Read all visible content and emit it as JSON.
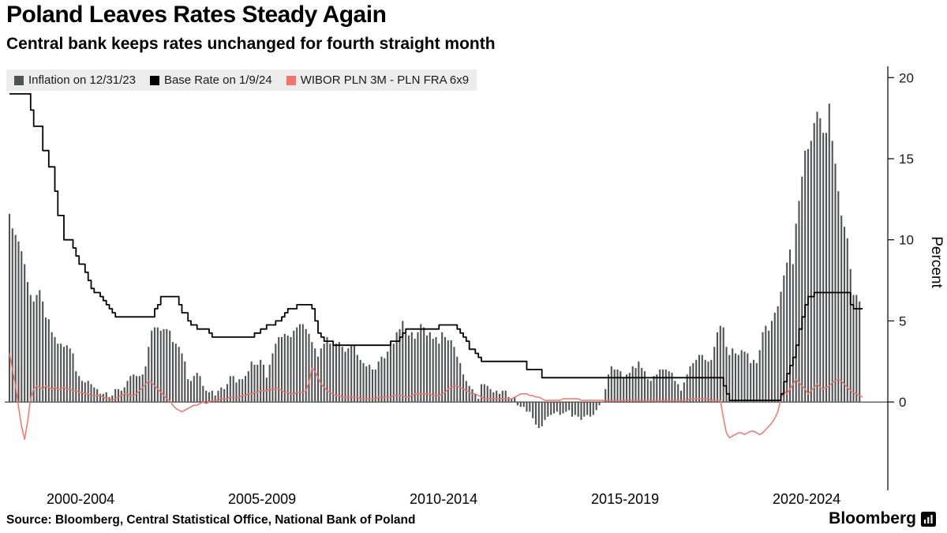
{
  "title": "Poland Leaves Rates Steady Again",
  "subtitle": "Central bank keeps rates unchanged for fourth straight month",
  "source": "Source: Bloomberg, Central Statistical Office, National Bank of Poland",
  "brand": "Bloomberg",
  "legend": [
    {
      "label": "Inflation on 12/31/23",
      "color": "#515254"
    },
    {
      "label": "Base Rate on 1/9/24",
      "color": "#000000"
    },
    {
      "label": "WIBOR PLN 3M - PLN FRA 6x9",
      "color": "#f3756e"
    }
  ],
  "chart_data": {
    "type": "bar",
    "title": "Poland Leaves Rates Steady Again",
    "subtitle": "Central bank keeps rates unchanged for fourth straight month",
    "ylabel": "Percent",
    "xlabel": "",
    "grid": false,
    "legend_position": "top-left",
    "yticks": [
      0,
      5,
      10,
      15,
      20
    ],
    "ylim": [
      -5.4,
      20.6
    ],
    "start": "2000-07",
    "frequency": "monthly",
    "x_groups": [
      {
        "label": "2000-2004",
        "center": 2002.5
      },
      {
        "label": "2005-2009",
        "center": 2007.5
      },
      {
        "label": "2010-2014",
        "center": 2012.5
      },
      {
        "label": "2015-2019",
        "center": 2017.5
      },
      {
        "label": "2020-2024",
        "center": 2022.5
      }
    ],
    "series": [
      {
        "name": "Inflation on 12/31/23",
        "type": "bar",
        "color": "#515254",
        "values": [
          11.6,
          10.7,
          10.3,
          9.9,
          9.3,
          8.5,
          7.4,
          6.6,
          6.2,
          6.6,
          6.9,
          6.2,
          5.2,
          5.1,
          4.3,
          4.0,
          3.6,
          3.6,
          3.4,
          3.5,
          3.3,
          3.0,
          1.9,
          1.6,
          1.3,
          1.2,
          1.3,
          1.1,
          0.9,
          0.8,
          0.5,
          0.5,
          0.6,
          0.3,
          0.4,
          0.8,
          0.8,
          0.7,
          0.9,
          1.3,
          1.6,
          1.7,
          1.6,
          1.6,
          1.7,
          2.2,
          3.4,
          4.4,
          4.6,
          4.6,
          4.4,
          4.5,
          4.5,
          4.4,
          3.7,
          3.6,
          3.4,
          3.0,
          2.5,
          1.4,
          1.3,
          1.6,
          1.8,
          1.6,
          1.0,
          0.7,
          0.6,
          0.7,
          0.4,
          0.7,
          0.9,
          0.8,
          1.1,
          1.6,
          1.6,
          1.2,
          1.4,
          1.4,
          1.6,
          1.9,
          2.5,
          2.3,
          2.3,
          2.6,
          2.3,
          1.5,
          2.3,
          3.0,
          3.6,
          4.0,
          4.0,
          4.2,
          4.1,
          4.0,
          4.4,
          4.6,
          4.8,
          4.8,
          4.5,
          4.2,
          3.7,
          3.3,
          2.8,
          3.3,
          3.6,
          4.0,
          3.6,
          3.5,
          3.6,
          3.7,
          3.4,
          3.1,
          3.3,
          3.5,
          3.5,
          2.9,
          2.6,
          2.4,
          2.2,
          2.3,
          2.0,
          2.0,
          2.5,
          2.8,
          2.7,
          3.1,
          3.6,
          3.6,
          4.3,
          4.5,
          5.0,
          4.2,
          4.1,
          4.3,
          3.9,
          4.3,
          4.8,
          4.6,
          4.1,
          4.3,
          3.9,
          4.0,
          3.6,
          4.3,
          4.0,
          3.8,
          3.8,
          3.4,
          2.8,
          2.4,
          1.7,
          1.3,
          1.0,
          0.8,
          0.5,
          0.2,
          1.1,
          1.1,
          1.0,
          0.8,
          0.6,
          0.7,
          0.5,
          0.7,
          0.7,
          0.3,
          0.2,
          0.3,
          -0.2,
          -0.3,
          -0.3,
          -0.6,
          -0.6,
          -1.0,
          -1.4,
          -1.6,
          -1.5,
          -1.1,
          -0.9,
          -0.8,
          -0.7,
          -0.6,
          -0.8,
          -0.7,
          -0.6,
          -0.5,
          -0.9,
          -0.8,
          -0.9,
          -1.1,
          -0.9,
          -0.8,
          -0.9,
          -0.8,
          -0.5,
          -0.2,
          0.0,
          0.8,
          1.7,
          2.2,
          2.0,
          2.0,
          1.9,
          1.5,
          1.7,
          1.8,
          2.2,
          2.1,
          2.5,
          2.1,
          1.9,
          1.4,
          1.3,
          1.6,
          1.7,
          2.0,
          2.0,
          2.0,
          1.9,
          1.8,
          1.3,
          1.1,
          0.7,
          1.2,
          1.7,
          2.2,
          2.4,
          2.6,
          2.9,
          2.9,
          2.6,
          2.5,
          2.6,
          3.4,
          4.3,
          4.7,
          4.6,
          3.4,
          2.9,
          3.3,
          3.0,
          2.9,
          3.2,
          3.1,
          3.0,
          2.4,
          2.6,
          2.4,
          3.2,
          4.3,
          4.7,
          4.4,
          5.0,
          5.5,
          5.9,
          6.8,
          7.8,
          8.6,
          9.4,
          8.5,
          11.0,
          12.4,
          13.9,
          15.5,
          15.6,
          16.1,
          17.2,
          17.9,
          17.5,
          16.6,
          16.6,
          18.4,
          16.1,
          14.7,
          13.0,
          11.5,
          10.8,
          10.1,
          8.2,
          6.6,
          6.6,
          6.2
        ]
      },
      {
        "name": "WIBOR PLN 3M - PLN FRA 6x9",
        "type": "line",
        "step": false,
        "color": "#f3756e",
        "values": [
          3.0,
          2.0,
          1.0,
          -0.3,
          -1.5,
          -2.3,
          -1.2,
          0.2,
          0.8,
          1.0,
          0.9,
          0.8,
          1.0,
          0.9,
          0.8,
          0.9,
          0.8,
          0.8,
          0.9,
          0.8,
          0.8,
          0.7,
          0.7,
          0.6,
          0.6,
          0.5,
          0.5,
          0.4,
          0.4,
          0.4,
          0.4,
          0.3,
          0.2,
          0.2,
          0.1,
          0.2,
          0.3,
          0.4,
          0.5,
          0.5,
          0.4,
          0.4,
          0.5,
          0.7,
          0.9,
          1.1,
          1.3,
          1.2,
          1.0,
          0.8,
          0.6,
          0.4,
          0.2,
          0.1,
          -0.2,
          -0.4,
          -0.5,
          -0.6,
          -0.5,
          -0.4,
          -0.3,
          -0.2,
          -0.2,
          -0.1,
          0.0,
          -0.1,
          0.0,
          0.1,
          0.1,
          0.1,
          0.2,
          0.2,
          0.2,
          0.3,
          0.3,
          0.3,
          0.3,
          0.4,
          0.4,
          0.5,
          0.5,
          0.6,
          0.6,
          0.7,
          0.7,
          0.7,
          0.8,
          0.8,
          0.8,
          0.8,
          0.7,
          0.6,
          0.6,
          0.5,
          0.5,
          0.6,
          0.6,
          0.6,
          0.7,
          1.2,
          2.1,
          1.9,
          1.5,
          1.1,
          0.9,
          0.7,
          0.6,
          0.5,
          0.4,
          0.4,
          0.3,
          0.3,
          0.3,
          0.3,
          0.3,
          0.3,
          0.2,
          0.2,
          0.2,
          0.2,
          0.2,
          0.2,
          0.3,
          0.3,
          0.3,
          0.3,
          0.3,
          0.4,
          0.4,
          0.4,
          0.4,
          0.3,
          0.3,
          0.4,
          0.5,
          0.5,
          0.5,
          0.5,
          0.5,
          0.5,
          0.4,
          0.4,
          0.4,
          0.5,
          0.6,
          0.8,
          0.9,
          1.0,
          1.0,
          0.9,
          0.8,
          0.7,
          0.6,
          0.5,
          0.5,
          0.4,
          0.3,
          0.2,
          0.2,
          0.2,
          0.2,
          0.2,
          0.2,
          0.2,
          0.2,
          0.2,
          0.2,
          0.3,
          0.4,
          0.5,
          0.5,
          0.5,
          0.4,
          0.4,
          0.3,
          0.3,
          0.2,
          0.1,
          0.1,
          0.1,
          0.1,
          0.1,
          0.1,
          0.2,
          0.2,
          0.2,
          0.2,
          0.2,
          0.2,
          0.1,
          0.1,
          0.1,
          0.1,
          0.1,
          0.1,
          0.1,
          0.1,
          0.1,
          0.1,
          0.1,
          0.1,
          0.1,
          0.1,
          0.1,
          0.1,
          0.1,
          0.1,
          0.1,
          0.1,
          0.1,
          0.1,
          0.1,
          0.1,
          0.1,
          0.1,
          0.1,
          0.1,
          0.1,
          0.1,
          0.1,
          0.1,
          0.1,
          0.1,
          0.1,
          0.1,
          0.2,
          0.2,
          0.2,
          0.2,
          0.2,
          0.2,
          0.2,
          0.1,
          0.1,
          0.1,
          0.1,
          -1.0,
          -1.9,
          -2.2,
          -2.1,
          -2.0,
          -1.9,
          -1.9,
          -2.0,
          -1.9,
          -1.8,
          -1.8,
          -1.9,
          -2.0,
          -1.9,
          -1.7,
          -1.5,
          -1.3,
          -1.0,
          -0.6,
          0.2,
          0.7,
          0.5,
          0.8,
          1.1,
          1.4,
          1.2,
          1.0,
          0.8,
          0.5,
          0.7,
          0.9,
          1.1,
          0.9,
          0.8,
          0.9,
          1.0,
          1.2,
          1.3,
          1.4,
          1.3,
          1.1,
          0.9,
          0.7,
          0.6,
          0.5,
          0.4,
          0.3
        ]
      },
      {
        "name": "Base Rate on 1/9/24",
        "type": "line",
        "step": true,
        "color": "#000000",
        "values": [
          19,
          19,
          19,
          19,
          19,
          19,
          19,
          18,
          17,
          17,
          17,
          15.5,
          15.5,
          14.5,
          14.5,
          13,
          11.5,
          11.5,
          10,
          10,
          10,
          9.5,
          9,
          8.5,
          8.5,
          8,
          7.5,
          7,
          6.75,
          6.75,
          6.5,
          6.25,
          6,
          5.75,
          5.5,
          5.25,
          5.25,
          5.25,
          5.25,
          5.25,
          5.25,
          5.25,
          5.25,
          5.25,
          5.25,
          5.25,
          5.25,
          5.25,
          5.75,
          6,
          6.5,
          6.5,
          6.5,
          6.5,
          6.5,
          6.5,
          6,
          5.5,
          5.5,
          5,
          4.75,
          4.75,
          4.5,
          4.5,
          4.5,
          4.5,
          4.25,
          4,
          4,
          4,
          4,
          4,
          4,
          4,
          4,
          4,
          4,
          4,
          4,
          4,
          4,
          4.25,
          4.25,
          4.5,
          4.5,
          4.75,
          4.75,
          4.75,
          5,
          5,
          5.25,
          5.5,
          5.75,
          5.75,
          5.75,
          6,
          6,
          6,
          6,
          6,
          5.75,
          5,
          4.25,
          4,
          3.75,
          3.75,
          3.75,
          3.5,
          3.5,
          3.5,
          3.5,
          3.5,
          3.5,
          3.5,
          3.5,
          3.5,
          3.5,
          3.5,
          3.5,
          3.5,
          3.5,
          3.5,
          3.5,
          3.5,
          3.5,
          3.5,
          3.75,
          3.75,
          3.75,
          4,
          4.25,
          4.5,
          4.5,
          4.5,
          4.5,
          4.5,
          4.5,
          4.5,
          4.5,
          4.5,
          4.5,
          4.5,
          4.75,
          4.75,
          4.75,
          4.75,
          4.75,
          4.75,
          4.5,
          4.25,
          4,
          3.75,
          3.25,
          3.25,
          3,
          2.75,
          2.5,
          2.5,
          2.5,
          2.5,
          2.5,
          2.5,
          2.5,
          2.5,
          2.5,
          2.5,
          2.5,
          2.5,
          2.5,
          2.5,
          2.5,
          2,
          2,
          2,
          2,
          2,
          1.5,
          1.5,
          1.5,
          1.5,
          1.5,
          1.5,
          1.5,
          1.5,
          1.5,
          1.5,
          1.5,
          1.5,
          1.5,
          1.5,
          1.5,
          1.5,
          1.5,
          1.5,
          1.5,
          1.5,
          1.5,
          1.5,
          1.5,
          1.5,
          1.5,
          1.5,
          1.5,
          1.5,
          1.5,
          1.5,
          1.5,
          1.5,
          1.5,
          1.5,
          1.5,
          1.5,
          1.5,
          1.5,
          1.5,
          1.5,
          1.5,
          1.5,
          1.5,
          1.5,
          1.5,
          1.5,
          1.5,
          1.5,
          1.5,
          1.5,
          1.5,
          1.5,
          1.5,
          1.5,
          1.5,
          1.5,
          1.5,
          1.5,
          1.5,
          1.5,
          1.0,
          0.5,
          0.1,
          0.1,
          0.1,
          0.1,
          0.1,
          0.1,
          0.1,
          0.1,
          0.1,
          0.1,
          0.1,
          0.1,
          0.1,
          0.1,
          0.1,
          0.1,
          0.1,
          0.5,
          1.25,
          1.75,
          2.25,
          2.75,
          3.5,
          4.5,
          5.25,
          6,
          6.5,
          6.5,
          6.75,
          6.75,
          6.75,
          6.75,
          6.75,
          6.75,
          6.75,
          6.75,
          6.75,
          6.75,
          6.75,
          6.75,
          6,
          5.75,
          5.75,
          5.75,
          5.75
        ]
      }
    ]
  }
}
